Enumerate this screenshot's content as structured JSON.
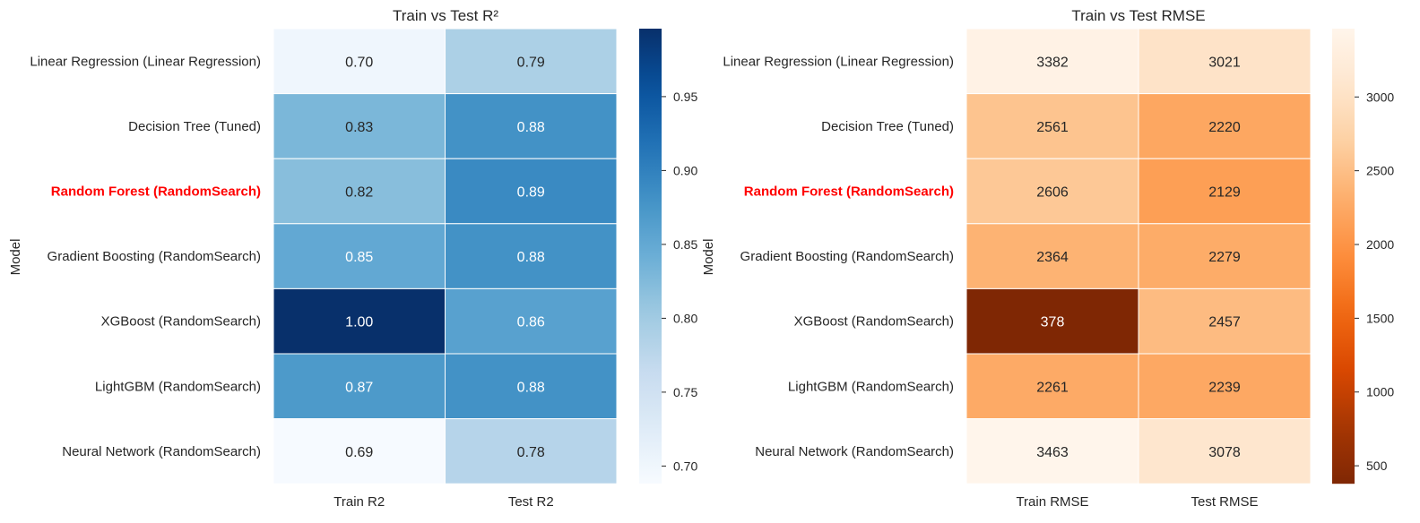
{
  "chart_data": [
    {
      "type": "heatmap",
      "title": "Train vs Test R²",
      "ylabel": "Model",
      "xlabel": "",
      "columns": [
        "Train R2",
        "Test R2"
      ],
      "rows": [
        "Linear Regression (Linear Regression)",
        "Decision Tree (Tuned)",
        "Random Forest (RandomSearch)",
        "Gradient Boosting (RandomSearch)",
        "XGBoost (RandomSearch)",
        "LightGBM (RandomSearch)",
        "Neural Network (RandomSearch)"
      ],
      "highlight_row": "Random Forest (RandomSearch)",
      "highlight_color": "#ff0000",
      "values": [
        [
          0.7,
          0.79
        ],
        [
          0.83,
          0.88
        ],
        [
          0.82,
          0.89
        ],
        [
          0.85,
          0.88
        ],
        [
          1.0,
          0.86
        ],
        [
          0.87,
          0.88
        ],
        [
          0.69,
          0.78
        ]
      ],
      "labels": [
        [
          "0.70",
          "0.79"
        ],
        [
          "0.83",
          "0.88"
        ],
        [
          "0.82",
          "0.89"
        ],
        [
          "0.85",
          "0.88"
        ],
        [
          "1.00",
          "0.86"
        ],
        [
          "0.87",
          "0.88"
        ],
        [
          "0.69",
          "0.78"
        ]
      ],
      "colormap": "Blues",
      "color_range": [
        0.688,
        0.996
      ],
      "colorbar_ticks": [
        0.7,
        0.75,
        0.8,
        0.85,
        0.9,
        0.95
      ],
      "colorbar_tick_labels": [
        "0.70",
        "0.75",
        "0.80",
        "0.85",
        "0.90",
        "0.95"
      ]
    },
    {
      "type": "heatmap",
      "title": "Train vs Test RMSE",
      "ylabel": "Model",
      "xlabel": "",
      "columns": [
        "Train RMSE",
        "Test RMSE"
      ],
      "rows": [
        "Linear Regression (Linear Regression)",
        "Decision Tree (Tuned)",
        "Random Forest (RandomSearch)",
        "Gradient Boosting (RandomSearch)",
        "XGBoost (RandomSearch)",
        "LightGBM (RandomSearch)",
        "Neural Network (RandomSearch)"
      ],
      "highlight_row": "Random Forest (RandomSearch)",
      "highlight_color": "#ff0000",
      "values": [
        [
          3382,
          3021
        ],
        [
          2561,
          2220
        ],
        [
          2606,
          2129
        ],
        [
          2364,
          2279
        ],
        [
          378,
          2457
        ],
        [
          2261,
          2239
        ],
        [
          3463,
          3078
        ]
      ],
      "labels": [
        [
          "3382",
          "3021"
        ],
        [
          "2561",
          "2220"
        ],
        [
          "2606",
          "2129"
        ],
        [
          "2364",
          "2279"
        ],
        [
          "378",
          "2457"
        ],
        [
          "2261",
          "2239"
        ],
        [
          "3463",
          "3078"
        ]
      ],
      "colormap": "Oranges_r",
      "color_range": [
        378,
        3463
      ],
      "colorbar_ticks": [
        500,
        1000,
        1500,
        2000,
        2500,
        3000
      ],
      "colorbar_tick_labels": [
        "500",
        "1000",
        "1500",
        "2000",
        "2500",
        "3000"
      ]
    }
  ]
}
